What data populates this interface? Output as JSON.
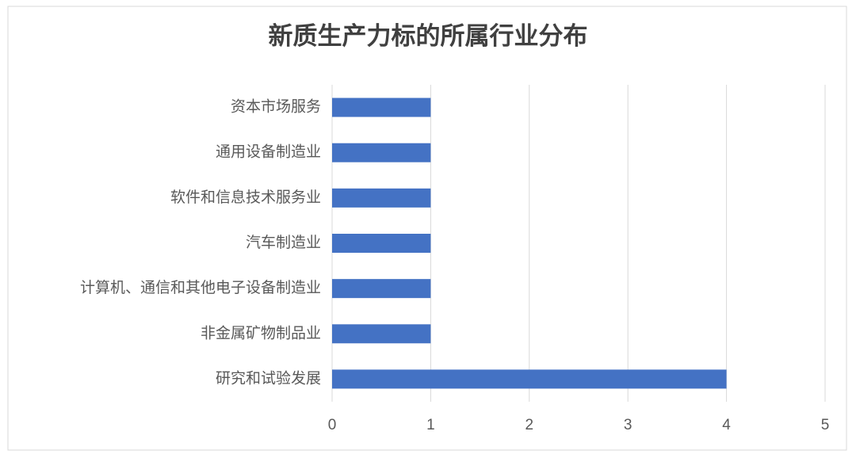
{
  "chart_data": {
    "type": "bar",
    "orientation": "horizontal",
    "title": "新质生产力标的所属行业分布",
    "categories": [
      "资本市场服务",
      "通用设备制造业",
      "软件和信息技术服务业",
      "汽车制造业",
      "计算机、通信和其他电子设备制造业",
      "非金属矿物制品业",
      "研究和试验发展"
    ],
    "values": [
      1,
      1,
      1,
      1,
      1,
      1,
      4
    ],
    "color": "#4472c4",
    "xlim": [
      0,
      5
    ],
    "xticks": [
      0,
      1,
      2,
      3,
      4,
      5
    ],
    "grid": true
  }
}
